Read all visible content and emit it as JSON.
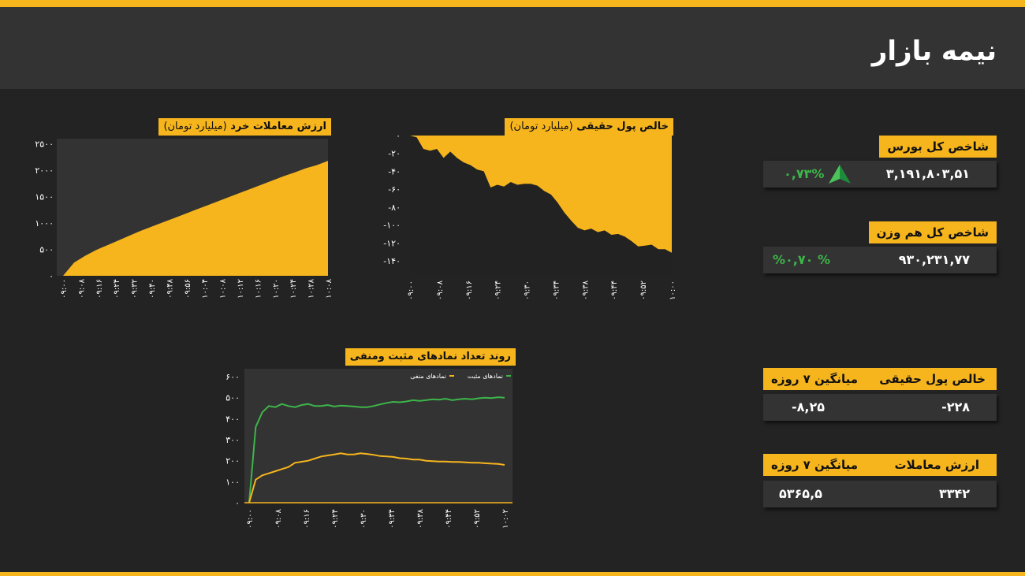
{
  "page_title": "نیمه بازار",
  "colors": {
    "accent": "#F7B51D",
    "positive": "#3DB54A",
    "background": "#232323",
    "panel": "#333333"
  },
  "kpis": {
    "total_index": {
      "label": "شاخص کل بورس",
      "value": "۳,۱۹۱,۸۰۳,۵۱",
      "change": "۰,۷۳%",
      "arrow_icon": "up-arrow-icon"
    },
    "equal_weight_index": {
      "label": "شاخص کل هم وزن",
      "value": "۹۳۰,۲۳۱,۷۷",
      "change": "%۰,۷۰ %"
    },
    "net_real_money": {
      "label": "خالص پول حقیقی",
      "avg_label": "میانگین ۷ روزه",
      "value": "-۲۲۸",
      "avg_value": "-۸,۲۵"
    },
    "trade_value": {
      "label": "ارزش معاملات",
      "avg_label": "میانگین ۷ روزه",
      "value": "۳۳۴۲",
      "avg_value": "۵۳۶۵,۵"
    }
  },
  "chart_data": [
    {
      "type": "area",
      "title": "ارزش معاملات خرد",
      "unit": "(میلیارد تومان)",
      "x_ticks": [
        "۰۹:۰۰",
        "۰۹:۰۸",
        "۰۹:۱۶",
        "۰۹:۲۴",
        "۰۹:۳۲",
        "۰۹:۴۰",
        "۰۹:۴۸",
        "۰۹:۵۶",
        "۱۰:۰۴",
        "۱۰:۰۸",
        "۱۰:۱۲",
        "۱۰:۱۶",
        "۱۰:۲۰",
        "۱۰:۲۴",
        "۱۰:۲۸",
        "۱۰:۰۸"
      ],
      "y_ticks": [
        "۰",
        "۵۰۰",
        "۱۰۰۰",
        "۱۵۰۰",
        "۲۰۰۰",
        "۲۵۰۰"
      ],
      "ylim": [
        0,
        2600
      ],
      "values": [
        0,
        250,
        380,
        490,
        580,
        670,
        760,
        850,
        930,
        1010,
        1090,
        1170,
        1250,
        1330,
        1410,
        1490,
        1570,
        1650,
        1730,
        1810,
        1890,
        1960,
        2040,
        2100,
        2180
      ]
    },
    {
      "type": "area",
      "title": "خالص پول حقیقی",
      "unit": "(میلیارد تومان)",
      "x_ticks": [
        "۰۹:۰۰",
        "۰۹:۰۸",
        "۰۹:۱۶",
        "۰۹:۲۴",
        "۰۹:۳۰",
        "۰۹:۳۴",
        "۰۹:۳۸",
        "۰۹:۴۴",
        "۰۹:۵۲",
        "۱۰:۰۰"
      ],
      "y_ticks": [
        "۰",
        "-۲۰",
        "-۴۰",
        "-۶۰",
        "-۸۰",
        "-۱۰۰",
        "-۱۲۰",
        "-۱۴۰"
      ],
      "ylim": [
        -155,
        0
      ],
      "values": [
        0,
        -2,
        -15,
        -17,
        -15,
        -25,
        -18,
        -25,
        -30,
        -33,
        -38,
        -40,
        -58,
        -55,
        -57,
        -52,
        -55,
        -54,
        -54,
        -56,
        -62,
        -66,
        -75,
        -86,
        -95,
        -103,
        -106,
        -104,
        -108,
        -106,
        -111,
        -110,
        -113,
        -118,
        -124,
        -123,
        -122,
        -127,
        -127,
        -131
      ]
    },
    {
      "type": "line",
      "title": "روند تعداد نمادهای مثبت ومنفی",
      "x_ticks": [
        "۰۹:۰۰",
        "۰۹:۰۸",
        "۰۹:۱۶",
        "۰۹:۲۴",
        "۰۹:۳۰",
        "۰۹:۳۴",
        "۰۹:۳۸",
        "۰۹:۴۴",
        "۰۹:۵۲",
        "۱۰:۰۲"
      ],
      "y_ticks": [
        "۰",
        "۱۰۰",
        "۲۰۰",
        "۳۰۰",
        "۴۰۰",
        "۵۰۰",
        "۶۰۰"
      ],
      "ylim": [
        0,
        600
      ],
      "legend": [
        "نمادهای مثبت",
        "نمادهای منفی"
      ],
      "series": [
        {
          "name": "نمادهای مثبت",
          "color": "#3DB54A",
          "values": [
            0,
            360,
            430,
            460,
            455,
            470,
            460,
            455,
            465,
            470,
            460,
            460,
            465,
            458,
            462,
            460,
            458,
            455,
            455,
            460,
            468,
            475,
            480,
            478,
            482,
            488,
            485,
            488,
            492,
            490,
            495,
            488,
            492,
            495,
            492,
            497,
            500,
            498,
            502,
            500
          ]
        },
        {
          "name": "نمادهای منفی",
          "color": "#F7B51D",
          "values": [
            0,
            110,
            130,
            140,
            150,
            160,
            170,
            190,
            195,
            200,
            210,
            220,
            225,
            230,
            235,
            230,
            230,
            235,
            232,
            228,
            222,
            220,
            218,
            212,
            210,
            205,
            205,
            200,
            198,
            196,
            196,
            194,
            194,
            192,
            190,
            190,
            188,
            186,
            185,
            180
          ]
        }
      ]
    }
  ]
}
